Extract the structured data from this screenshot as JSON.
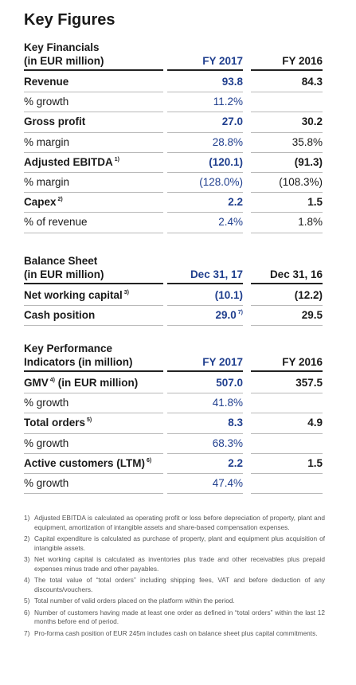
{
  "title": "Key Figures",
  "sections": [
    {
      "heading": [
        "Key Financials",
        "(in EUR million)"
      ],
      "columns": [
        "FY 2017",
        "FY 2016"
      ],
      "rows": [
        {
          "label": "Revenue",
          "bold": true,
          "values": [
            "93.8",
            "84.3"
          ]
        },
        {
          "label": "% growth",
          "values": [
            "11.2%",
            null
          ]
        },
        {
          "label": "Gross profit",
          "bold": true,
          "values": [
            "27.0",
            "30.2"
          ]
        },
        {
          "label": "% margin",
          "values": [
            "28.8%",
            "35.8%"
          ]
        },
        {
          "label": "Adjusted EBITDA",
          "note": "1)",
          "bold": true,
          "values": [
            "(120.1)",
            "(91.3)"
          ]
        },
        {
          "label": "% margin",
          "values": [
            "(128.0%)",
            "(108.3%)"
          ]
        },
        {
          "label": "Capex",
          "note": "2)",
          "bold": true,
          "values": [
            "2.2",
            "1.5"
          ]
        },
        {
          "label": "% of revenue",
          "values": [
            "2.4%",
            "1.8%"
          ]
        }
      ]
    },
    {
      "heading": [
        "Balance Sheet",
        "(in EUR million)"
      ],
      "columns": [
        "Dec 31, 17",
        "Dec 31, 16"
      ],
      "rows": [
        {
          "label": "Net working capital",
          "note": "3)",
          "bold": true,
          "values": [
            "(10.1)",
            "(12.2)"
          ]
        },
        {
          "label": "Cash position",
          "bold": true,
          "values": [
            "29.0",
            "29.5"
          ],
          "value_notes": [
            "7)",
            null
          ]
        }
      ]
    },
    {
      "heading": [
        "Key Performance",
        "Indicators (in million)"
      ],
      "columns": [
        "FY 2017",
        "FY 2016"
      ],
      "rows": [
        {
          "label": "GMV",
          "note": "4)",
          "label_after": " (in EUR million)",
          "bold": true,
          "values": [
            "507.0",
            "357.5"
          ]
        },
        {
          "label": "% growth",
          "values": [
            "41.8%",
            null
          ]
        },
        {
          "label": "Total orders",
          "note": "5)",
          "bold": true,
          "values": [
            "8.3",
            "4.9"
          ]
        },
        {
          "label": "% growth",
          "values": [
            "68.3%",
            null
          ]
        },
        {
          "label": "Active customers (LTM)",
          "note": "6)",
          "bold": true,
          "values": [
            "2.2",
            "1.5"
          ]
        },
        {
          "label": "% growth",
          "values": [
            "47.4%",
            null
          ]
        }
      ]
    }
  ],
  "footnotes": [
    {
      "marker": "1)",
      "text": "Adjusted EBITDA is calculated as operating profit or loss before depreciation of property, plant and equipment, amortization of intangible assets and share-based compensation expenses."
    },
    {
      "marker": "2)",
      "text": "Capital expenditure is calculated as purchase of property, plant and equipment plus acquisition of intangible assets."
    },
    {
      "marker": "3)",
      "text": "Net working capital is calculated as inventories plus trade and other receivables plus prepaid expenses minus trade and other payables."
    },
    {
      "marker": "4)",
      "text": "The total value of “total orders” including shipping fees, VAT and before deduction of any discounts/vouchers."
    },
    {
      "marker": "5)",
      "text": "Total number of valid orders placed on the platform within the period."
    },
    {
      "marker": "6)",
      "text": "Number of customers having made at least one order as defined in “total orders” within the last 12 months before end of period."
    },
    {
      "marker": "7)",
      "text": "Pro-forma cash position of EUR 245m includes cash on balance sheet plus capital commitments."
    }
  ]
}
